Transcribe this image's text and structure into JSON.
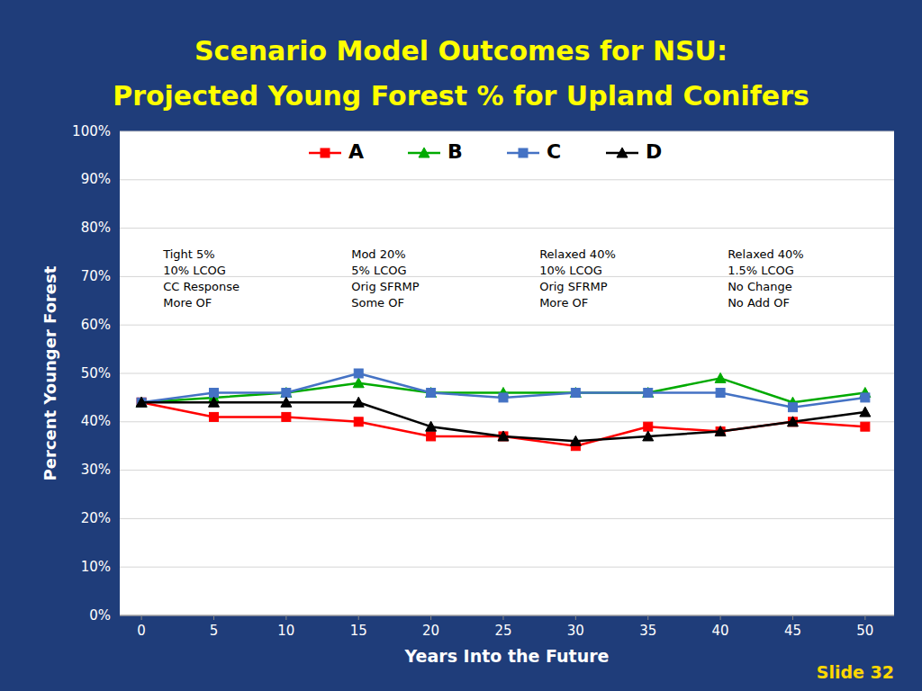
{
  "chart_data": {
    "type": "line",
    "title": "Scenario Model Outcomes for NSU:\nProjected Young Forest % for Upland Conifers",
    "x_label": "Years Into the Future",
    "y_label": "Percent Younger Forest",
    "x": [
      0,
      5,
      10,
      15,
      20,
      25,
      30,
      35,
      40,
      45,
      50
    ],
    "series": [
      {
        "name": "A",
        "color": "#FF0000",
        "marker": "square",
        "values": [
          0.44,
          0.41,
          0.41,
          0.4,
          0.37,
          0.37,
          0.35,
          0.39,
          0.38,
          0.4,
          0.39
        ]
      },
      {
        "name": "B",
        "color": "#00AA00",
        "marker": "triangle",
        "values": [
          0.44,
          0.45,
          0.46,
          0.48,
          0.46,
          0.46,
          0.46,
          0.46,
          0.49,
          0.44,
          0.46
        ]
      },
      {
        "name": "C",
        "color": "#4472C4",
        "marker": "square",
        "values": [
          0.44,
          0.46,
          0.46,
          0.5,
          0.46,
          0.45,
          0.46,
          0.46,
          0.46,
          0.43,
          0.45
        ]
      },
      {
        "name": "D",
        "color": "#000000",
        "marker": "triangle",
        "values": [
          0.44,
          0.44,
          0.44,
          0.44,
          0.39,
          0.37,
          0.36,
          0.37,
          0.38,
          0.4,
          0.42
        ]
      }
    ],
    "xlim": [
      -1.5,
      52
    ],
    "xticks": [
      0,
      5,
      10,
      15,
      20,
      25,
      30,
      35,
      40,
      45,
      50
    ],
    "ylim": [
      0.0,
      1.0
    ],
    "yticks": [
      {
        "value": 0.0,
        "label": "0%"
      },
      {
        "value": 0.1,
        "label": "10%"
      },
      {
        "value": 0.2,
        "label": "20%"
      },
      {
        "value": 0.3,
        "label": "30%"
      },
      {
        "value": 0.4,
        "label": "40%"
      },
      {
        "value": 0.5,
        "label": "50%"
      },
      {
        "value": 0.6,
        "label": "60%"
      },
      {
        "value": 0.7,
        "label": "70%"
      },
      {
        "value": 0.8,
        "label": "80%"
      },
      {
        "value": 0.9,
        "label": "90%"
      },
      {
        "value": 1.0,
        "label": "100%"
      }
    ],
    "grid": true,
    "legend": "top",
    "annotations": [
      {
        "text": "Tight 5%\n10% LCOG\nCC Response\nMore OF",
        "x": 1.5
      },
      {
        "text": "Mod 20%\n5% LCOG\nOrig SFRMP\nSome OF",
        "x": 14.5
      },
      {
        "text": "Relaxed 40%\n10% LCOG\nOrig SFRMP\nMore OF",
        "x": 27.5
      },
      {
        "text": "Relaxed 40%\n1.5% LCOG\nNo Change\nNo Add OF",
        "x": 40.5
      },
      {
        "text": "Slide 32"
      }
    ]
  }
}
